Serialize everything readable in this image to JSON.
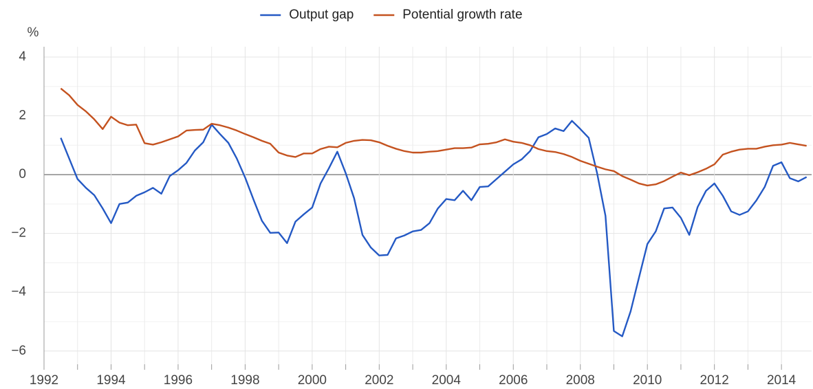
{
  "chart_data": {
    "type": "line",
    "y_label": "%",
    "x": [
      1992.5,
      1992.75,
      1993,
      1993.25,
      1993.5,
      1993.75,
      1994,
      1994.25,
      1994.5,
      1994.75,
      1995,
      1995.25,
      1995.5,
      1995.75,
      1996,
      1996.25,
      1996.5,
      1996.75,
      1997,
      1997.25,
      1997.5,
      1997.75,
      1998,
      1998.25,
      1998.5,
      1998.75,
      1999,
      1999.25,
      1999.5,
      1999.75,
      2000,
      2000.25,
      2000.5,
      2000.75,
      2001,
      2001.25,
      2001.5,
      2001.75,
      2002,
      2002.25,
      2002.5,
      2002.75,
      2003,
      2003.25,
      2003.5,
      2003.75,
      2004,
      2004.25,
      2004.5,
      2004.75,
      2005,
      2005.25,
      2005.5,
      2005.75,
      2006,
      2006.25,
      2006.5,
      2006.75,
      2007,
      2007.25,
      2007.5,
      2007.75,
      2008,
      2008.25,
      2008.5,
      2008.75,
      2009,
      2009.25,
      2009.5,
      2009.75,
      2010,
      2010.25,
      2010.5,
      2010.75,
      2011,
      2011.25,
      2011.5,
      2011.75,
      2012,
      2012.25,
      2012.5,
      2012.75,
      2013,
      2013.25,
      2013.5,
      2013.75,
      2014,
      2014.25,
      2014.5,
      2014.75
    ],
    "series": [
      {
        "name": "Output gap",
        "color": "#2459c4",
        "values": [
          1.25,
          0.55,
          -0.15,
          -0.45,
          -0.7,
          -1.15,
          -1.65,
          -1.0,
          -0.95,
          -0.72,
          -0.6,
          -0.45,
          -0.65,
          -0.05,
          0.15,
          0.4,
          0.82,
          1.1,
          1.7,
          1.38,
          1.08,
          0.55,
          -0.1,
          -0.85,
          -1.57,
          -1.98,
          -1.97,
          -2.33,
          -1.6,
          -1.35,
          -1.12,
          -0.3,
          0.22,
          0.78,
          0.05,
          -0.8,
          -2.05,
          -2.48,
          -2.75,
          -2.73,
          -2.17,
          -2.07,
          -1.93,
          -1.88,
          -1.65,
          -1.15,
          -0.83,
          -0.87,
          -0.55,
          -0.87,
          -0.42,
          -0.4,
          -0.15,
          0.1,
          0.35,
          0.52,
          0.8,
          1.27,
          1.38,
          1.57,
          1.48,
          1.83,
          1.55,
          1.25,
          0.05,
          -1.4,
          -5.32,
          -5.5,
          -4.65,
          -3.5,
          -2.36,
          -1.93,
          -1.15,
          -1.12,
          -1.47,
          -2.05,
          -1.1,
          -0.55,
          -0.3,
          -0.72,
          -1.25,
          -1.37,
          -1.25,
          -0.88,
          -0.42,
          0.3,
          0.42,
          -0.12,
          -0.23,
          -0.08
        ]
      },
      {
        "name": "Potential growth rate",
        "color": "#c4521f",
        "values": [
          2.93,
          2.7,
          2.37,
          2.15,
          1.88,
          1.55,
          1.97,
          1.77,
          1.68,
          1.7,
          1.07,
          1.02,
          1.1,
          1.2,
          1.3,
          1.5,
          1.52,
          1.53,
          1.73,
          1.68,
          1.6,
          1.5,
          1.38,
          1.27,
          1.15,
          1.05,
          0.75,
          0.65,
          0.6,
          0.72,
          0.72,
          0.87,
          0.95,
          0.93,
          1.08,
          1.15,
          1.18,
          1.17,
          1.1,
          0.98,
          0.88,
          0.8,
          0.75,
          0.75,
          0.78,
          0.8,
          0.85,
          0.9,
          0.9,
          0.92,
          1.03,
          1.05,
          1.1,
          1.2,
          1.12,
          1.08,
          1.0,
          0.87,
          0.8,
          0.77,
          0.7,
          0.6,
          0.47,
          0.37,
          0.27,
          0.18,
          0.12,
          -0.05,
          -0.17,
          -0.3,
          -0.37,
          -0.33,
          -0.22,
          -0.07,
          0.07,
          -0.02,
          0.08,
          0.2,
          0.35,
          0.68,
          0.78,
          0.85,
          0.88,
          0.88,
          0.95,
          1.0,
          1.02,
          1.08,
          1.03,
          0.98
        ]
      }
    ],
    "xlim": [
      1992,
      2014.9
    ],
    "xticks": [
      1992,
      1994,
      1996,
      1998,
      2000,
      2002,
      2004,
      2006,
      2008,
      2010,
      2012,
      2014
    ],
    "ylim": [
      -6.45,
      4.35
    ],
    "yticks": [
      {
        "value": -6,
        "label": "−6"
      },
      {
        "value": -4,
        "label": "−4"
      },
      {
        "value": -2,
        "label": "−2"
      },
      0,
      2,
      4
    ],
    "grid": true,
    "minor_grid": true,
    "legend": "top"
  }
}
